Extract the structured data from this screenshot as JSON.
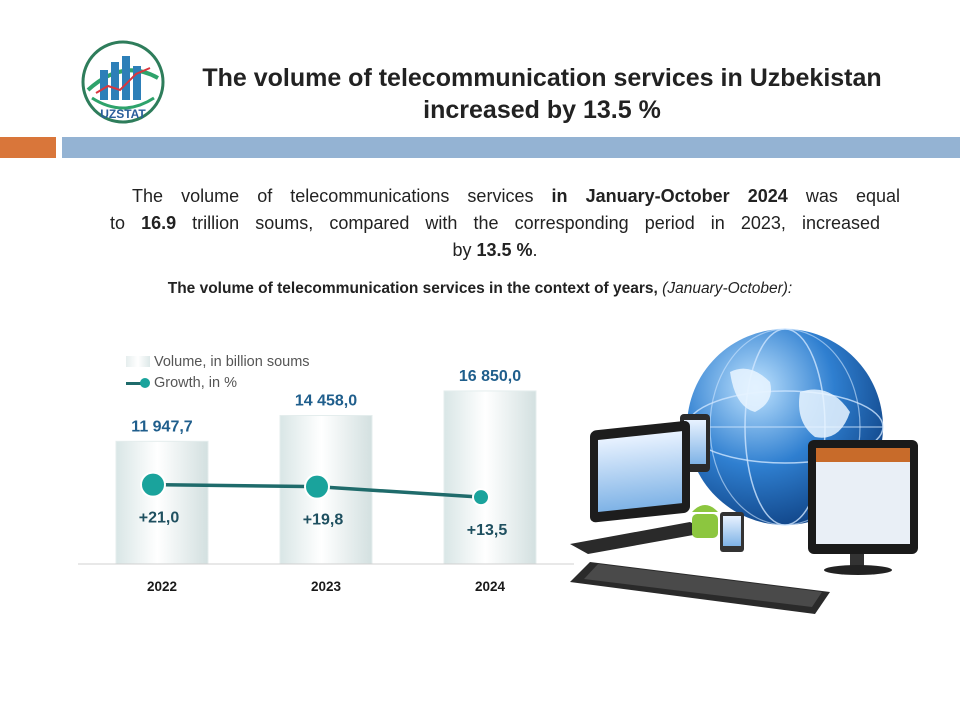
{
  "header": {
    "logo_text": "UZSTAT",
    "title_line1": "The volume of telecommunication services in Uzbekistan",
    "title_line2": "increased by 13.5 %"
  },
  "summary": {
    "p1": "The volume of telecommunications services ",
    "p1_bold": "in January-October 2024",
    "p1_end": " was equal",
    "p2_start": "to ",
    "p2_bold": "16.9",
    "p2_end": " trillion soums, compared with the corresponding period in 2023, increased",
    "p3_start": "by ",
    "p3_bold": "13.5 %",
    "p3_end": "."
  },
  "chart_title": {
    "main": "The volume of telecommunication services in the context of years,",
    "note": " (January-October):"
  },
  "chart_data": {
    "type": "bar",
    "categories": [
      "2022",
      "2023",
      "2024"
    ],
    "series": [
      {
        "name": "Volume, in billion soums",
        "type": "bar",
        "values": [
          11947.7,
          14458.0,
          16850.0
        ],
        "labels": [
          "11 947,7",
          "14 458,0",
          "16 850,0"
        ]
      },
      {
        "name": "Growth, in %",
        "type": "line",
        "values": [
          21.0,
          19.8,
          13.5
        ],
        "labels": [
          "+21,0",
          "+19,8",
          "+13,5"
        ]
      }
    ],
    "legend": [
      "Volume, in billion soums",
      "Growth, in %"
    ],
    "legend_position": "top-left",
    "colors": {
      "bar": "#e8f1f1",
      "line": "#1f6b6b",
      "marker": "#1aa39c",
      "value_label": "#1f5e8c",
      "growth_label": "#1f5060"
    }
  }
}
